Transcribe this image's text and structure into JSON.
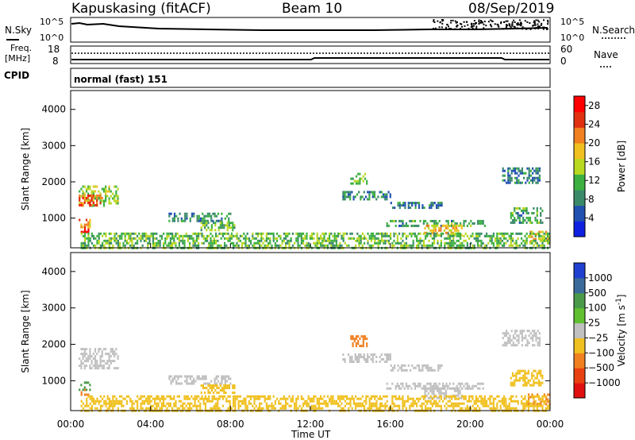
{
  "header": {
    "station": "Kapuskasing (fitACF)",
    "beam": "Beam 10",
    "date": "08/Sep/2019"
  },
  "noise_panel": {
    "left_label": "N.Sky",
    "right_label": "N.Search",
    "left_ticks": [
      "10^5",
      "10^0"
    ],
    "right_ticks": [
      "10^5",
      "10^0"
    ]
  },
  "freq_panel": {
    "left_label_1": "Freq.",
    "left_label_2": "[MHz]",
    "left_ticks": [
      "18",
      "8"
    ],
    "right_label": "Nave",
    "right_ticks": [
      "60",
      "0"
    ]
  },
  "cpid": {
    "label": "CPID",
    "mode": "normal (fast) 151"
  },
  "chart_data": [
    {
      "type": "heatmap",
      "ylabel": "Slant Range [km]",
      "xlabel": "Time UT",
      "x_ticks": [
        "00:00",
        "04:00",
        "08:00",
        "12:00",
        "16:00",
        "20:00",
        "00:00"
      ],
      "x_range_hours": [
        0,
        24
      ],
      "y_ticks": [
        1000,
        2000,
        3000,
        4000
      ],
      "y_range_km": [
        180,
        4520
      ],
      "colorbar": {
        "label": "Power [dB]",
        "ticks": [
          "4",
          "8",
          "12",
          "16",
          "20",
          "24",
          "28"
        ],
        "range": [
          0,
          30
        ],
        "colors": [
          "#1020e0",
          "#2050b0",
          "#3a8a6a",
          "#3cb040",
          "#b8d820",
          "#f0c020",
          "#f08020",
          "#e03010",
          "#ff0000"
        ]
      },
      "regions": [
        {
          "t0": 0.4,
          "t1": 2.4,
          "r0": 1350,
          "r1": 1900,
          "value": 14
        },
        {
          "t0": 0.4,
          "t1": 1.6,
          "r0": 1350,
          "r1": 1650,
          "value": 24
        },
        {
          "t0": 0.4,
          "t1": 1.0,
          "r0": 750,
          "r1": 980,
          "value": 20
        },
        {
          "t0": 0.5,
          "t1": 0.9,
          "r0": 620,
          "r1": 780,
          "value": 28
        },
        {
          "t0": 4.9,
          "t1": 8.0,
          "r0": 950,
          "r1": 1150,
          "value": 9
        },
        {
          "t0": 6.5,
          "t1": 8.2,
          "r0": 650,
          "r1": 900,
          "value": 12
        },
        {
          "t0": 13.6,
          "t1": 16.0,
          "r0": 1500,
          "r1": 1750,
          "value": 8
        },
        {
          "t0": 14.0,
          "t1": 14.8,
          "r0": 1950,
          "r1": 2250,
          "value": 13
        },
        {
          "t0": 16.0,
          "t1": 18.6,
          "r0": 1300,
          "r1": 1450,
          "value": 8
        },
        {
          "t0": 15.8,
          "t1": 20.7,
          "r0": 800,
          "r1": 950,
          "value": 10
        },
        {
          "t0": 17.7,
          "t1": 19.6,
          "r0": 550,
          "r1": 820,
          "value": 18
        },
        {
          "t0": 21.6,
          "t1": 23.5,
          "r0": 1950,
          "r1": 2400,
          "value": 8
        },
        {
          "t0": 22.0,
          "t1": 23.6,
          "r0": 850,
          "r1": 1300,
          "value": 10
        },
        {
          "t0": 22.8,
          "t1": 24.0,
          "r0": 350,
          "r1": 650,
          "value": 18
        },
        {
          "t0": 0.5,
          "t1": 24.0,
          "r0": 180,
          "r1": 600,
          "value": 12
        }
      ]
    },
    {
      "type": "heatmap",
      "ylabel": "Slant Range [km]",
      "xlabel": "Time UT",
      "x_ticks": [
        "00:00",
        "04:00",
        "08:00",
        "12:00",
        "16:00",
        "20:00",
        "00:00"
      ],
      "x_range_hours": [
        0,
        24
      ],
      "y_ticks": [
        1000,
        2000,
        3000,
        4000
      ],
      "y_range_km": [
        180,
        4520
      ],
      "colorbar": {
        "label": "Velocity [m s^-1]",
        "ticks": [
          "1000",
          "500",
          "100",
          "25",
          "-25",
          "-100",
          "-500",
          "-1000"
        ],
        "colors": [
          "#2040d0",
          "#3a6a9a",
          "#4a9a4a",
          "#60c030",
          "#c0c0c0",
          "#f0c020",
          "#f08020",
          "#e84010",
          "#e01010"
        ]
      },
      "regions": [
        {
          "t0": 0.4,
          "t1": 2.4,
          "r0": 1350,
          "r1": 1900,
          "value": 0
        },
        {
          "t0": 0.4,
          "t1": 1.0,
          "r0": 750,
          "r1": 980,
          "value": 150
        },
        {
          "t0": 0.5,
          "t1": 0.9,
          "r0": 620,
          "r1": 780,
          "value": -150
        },
        {
          "t0": 4.9,
          "t1": 8.0,
          "r0": 950,
          "r1": 1150,
          "value": 0
        },
        {
          "t0": 6.5,
          "t1": 8.2,
          "r0": 650,
          "r1": 900,
          "value": -60
        },
        {
          "t0": 13.6,
          "t1": 16.0,
          "r0": 1500,
          "r1": 1750,
          "value": 0
        },
        {
          "t0": 14.0,
          "t1": 14.8,
          "r0": 1950,
          "r1": 2250,
          "value": -300
        },
        {
          "t0": 16.0,
          "t1": 18.6,
          "r0": 1300,
          "r1": 1450,
          "value": 0
        },
        {
          "t0": 15.8,
          "t1": 20.7,
          "r0": 800,
          "r1": 950,
          "value": 0
        },
        {
          "t0": 17.7,
          "t1": 19.6,
          "r0": 550,
          "r1": 820,
          "value": 0
        },
        {
          "t0": 21.6,
          "t1": 23.5,
          "r0": 1950,
          "r1": 2400,
          "value": 0
        },
        {
          "t0": 22.0,
          "t1": 23.6,
          "r0": 850,
          "r1": 1300,
          "value": -60
        },
        {
          "t0": 22.8,
          "t1": 24.0,
          "r0": 350,
          "r1": 650,
          "value": -200
        },
        {
          "t0": 0.5,
          "t1": 24.0,
          "r0": 180,
          "r1": 600,
          "value": -60
        }
      ]
    }
  ]
}
